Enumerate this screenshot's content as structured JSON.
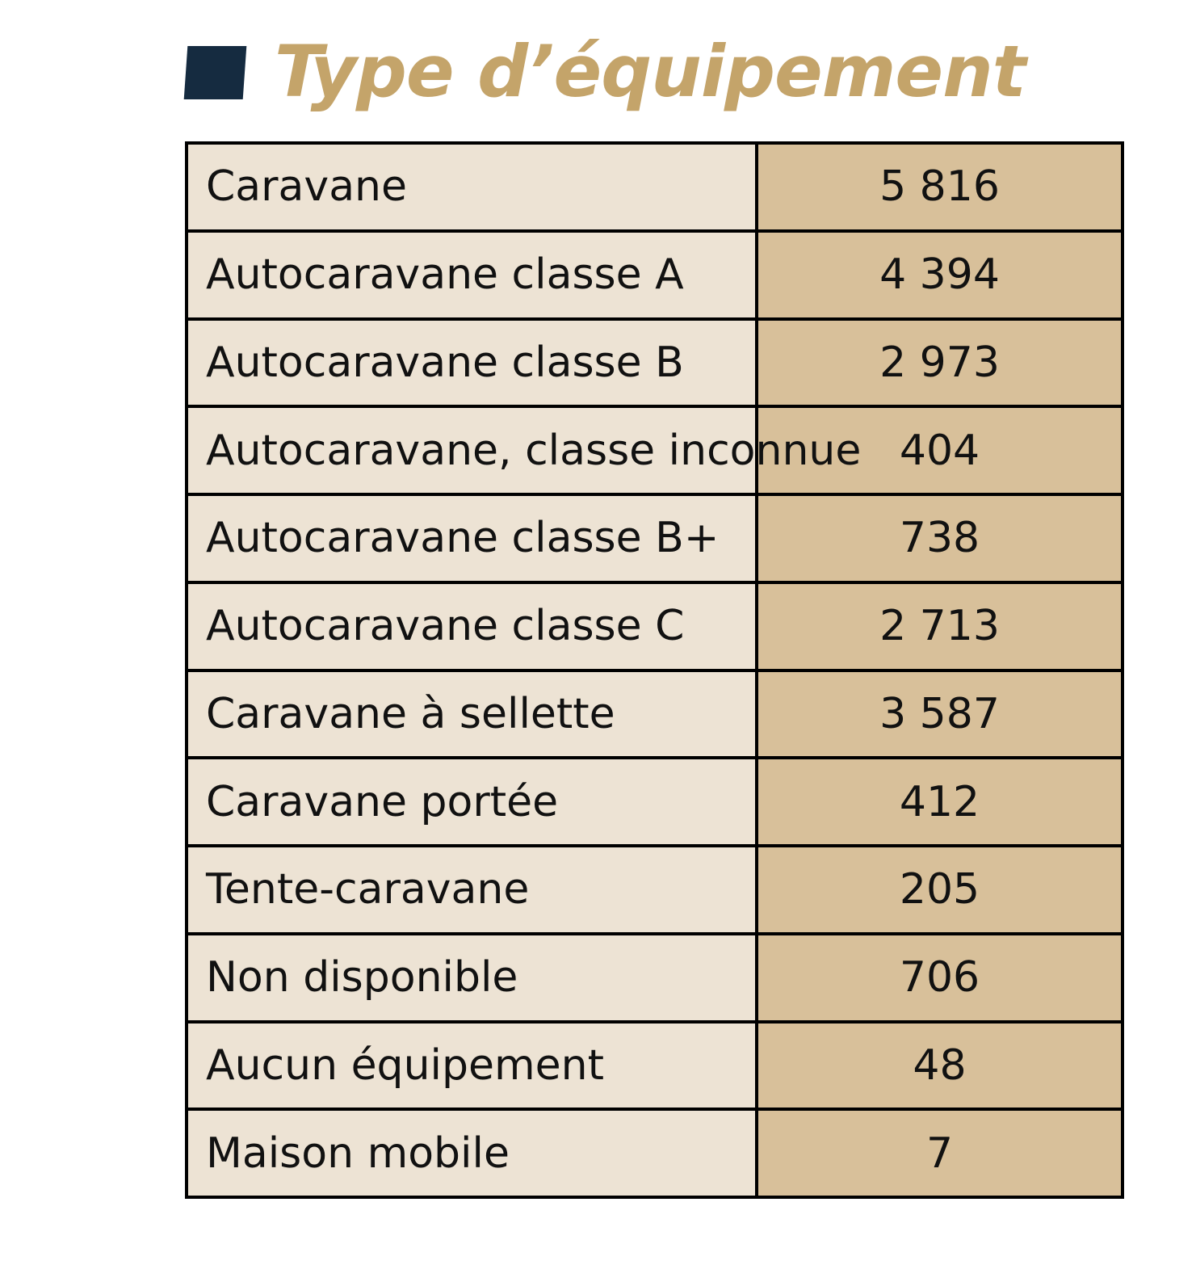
{
  "header": {
    "title": "Type d’équipement"
  },
  "table": {
    "rows": [
      [
        "Caravane",
        "5 816"
      ],
      [
        "Autocaravane classe A",
        "4 394"
      ],
      [
        "Autocaravane classe B",
        "2 973"
      ],
      [
        "Autocaravane, classe inconnue",
        "404"
      ],
      [
        "Autocaravane classe B+",
        "738"
      ],
      [
        "Autocaravane classe C",
        "2 713"
      ],
      [
        "Caravane à sellette",
        "3 587"
      ],
      [
        "Caravane portée",
        "412"
      ],
      [
        "Tente-caravane",
        "205"
      ],
      [
        "Non disponible",
        "706"
      ],
      [
        "Aucun équipement",
        "48"
      ],
      [
        "Maison mobile",
        "7"
      ]
    ]
  }
}
